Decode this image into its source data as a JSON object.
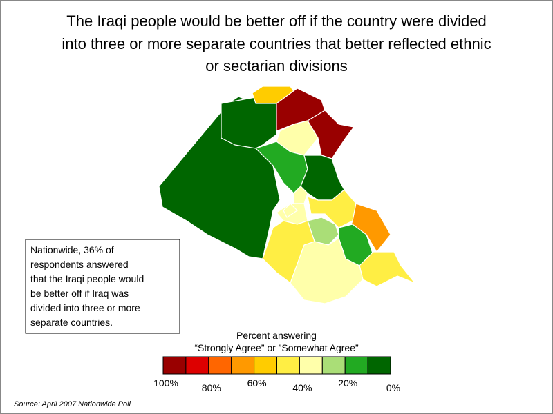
{
  "title": [
    "The Iraqi people would be better off if the country were divided",
    "into three or more separate countries that better reflected ethnic",
    "or sectarian divisions"
  ],
  "note": [
    "Nationwide, 36% of",
    "respondents answered",
    "that the Iraqi people would",
    "be better off if Iraq was",
    "divided into three or more",
    "separate countries."
  ],
  "legend": {
    "title": [
      "Percent answering",
      "“Strongly Agree” or ”Somewhat Agree”"
    ],
    "colors": [
      "#990000",
      "#dd0000",
      "#ff6600",
      "#ff9900",
      "#ffcc00",
      "#ffee44",
      "#ffffaa",
      "#aade77",
      "#22aa22",
      "#006600"
    ],
    "labels": [
      "100%",
      "80%",
      "60%",
      "40%",
      "20%",
      "0%"
    ]
  },
  "source": "Source: April 2007 Nationwide Poll"
}
